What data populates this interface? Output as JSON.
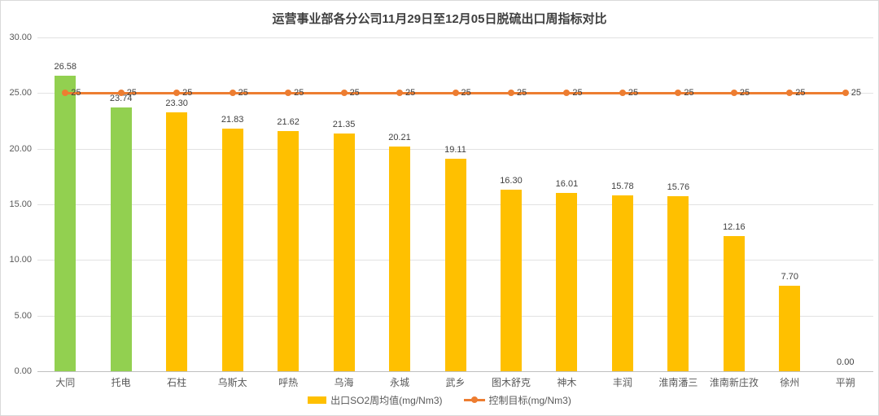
{
  "chart_data": {
    "type": "bar",
    "title": "运营事业部各分公司11月29日至12月05日脱硫出口周指标对比",
    "categories": [
      "大同",
      "托电",
      "石柱",
      "乌斯太",
      "呼热",
      "乌海",
      "永城",
      "武乡",
      "图木舒克",
      "神木",
      "丰润",
      "淮南潘三",
      "淮南新庄孜",
      "徐州",
      "平朔"
    ],
    "series": [
      {
        "name": "出口SO2周均值(mg/Nm3)",
        "type": "bar",
        "values": [
          26.58,
          23.74,
          23.3,
          21.83,
          21.62,
          21.35,
          20.21,
          19.11,
          16.3,
          16.01,
          15.78,
          15.76,
          12.16,
          7.7,
          0.0
        ],
        "color": "#FFC000",
        "highlight_color": "#92D050",
        "highlight_indices": [
          0,
          1
        ]
      },
      {
        "name": "控制目标(mg/Nm3)",
        "type": "line",
        "values": [
          25,
          25,
          25,
          25,
          25,
          25,
          25,
          25,
          25,
          25,
          25,
          25,
          25,
          25,
          25
        ],
        "point_label": "25",
        "color": "#ED7D31"
      }
    ],
    "ylim": [
      0,
      30
    ],
    "ytick_step": 5,
    "ytick_labels": [
      "0.00",
      "5.00",
      "10.00",
      "15.00",
      "20.00",
      "25.00",
      "30.00"
    ],
    "xlabel": "",
    "ylabel": "",
    "grid": true,
    "legend_position": "bottom",
    "value_label_decimals": 2
  }
}
